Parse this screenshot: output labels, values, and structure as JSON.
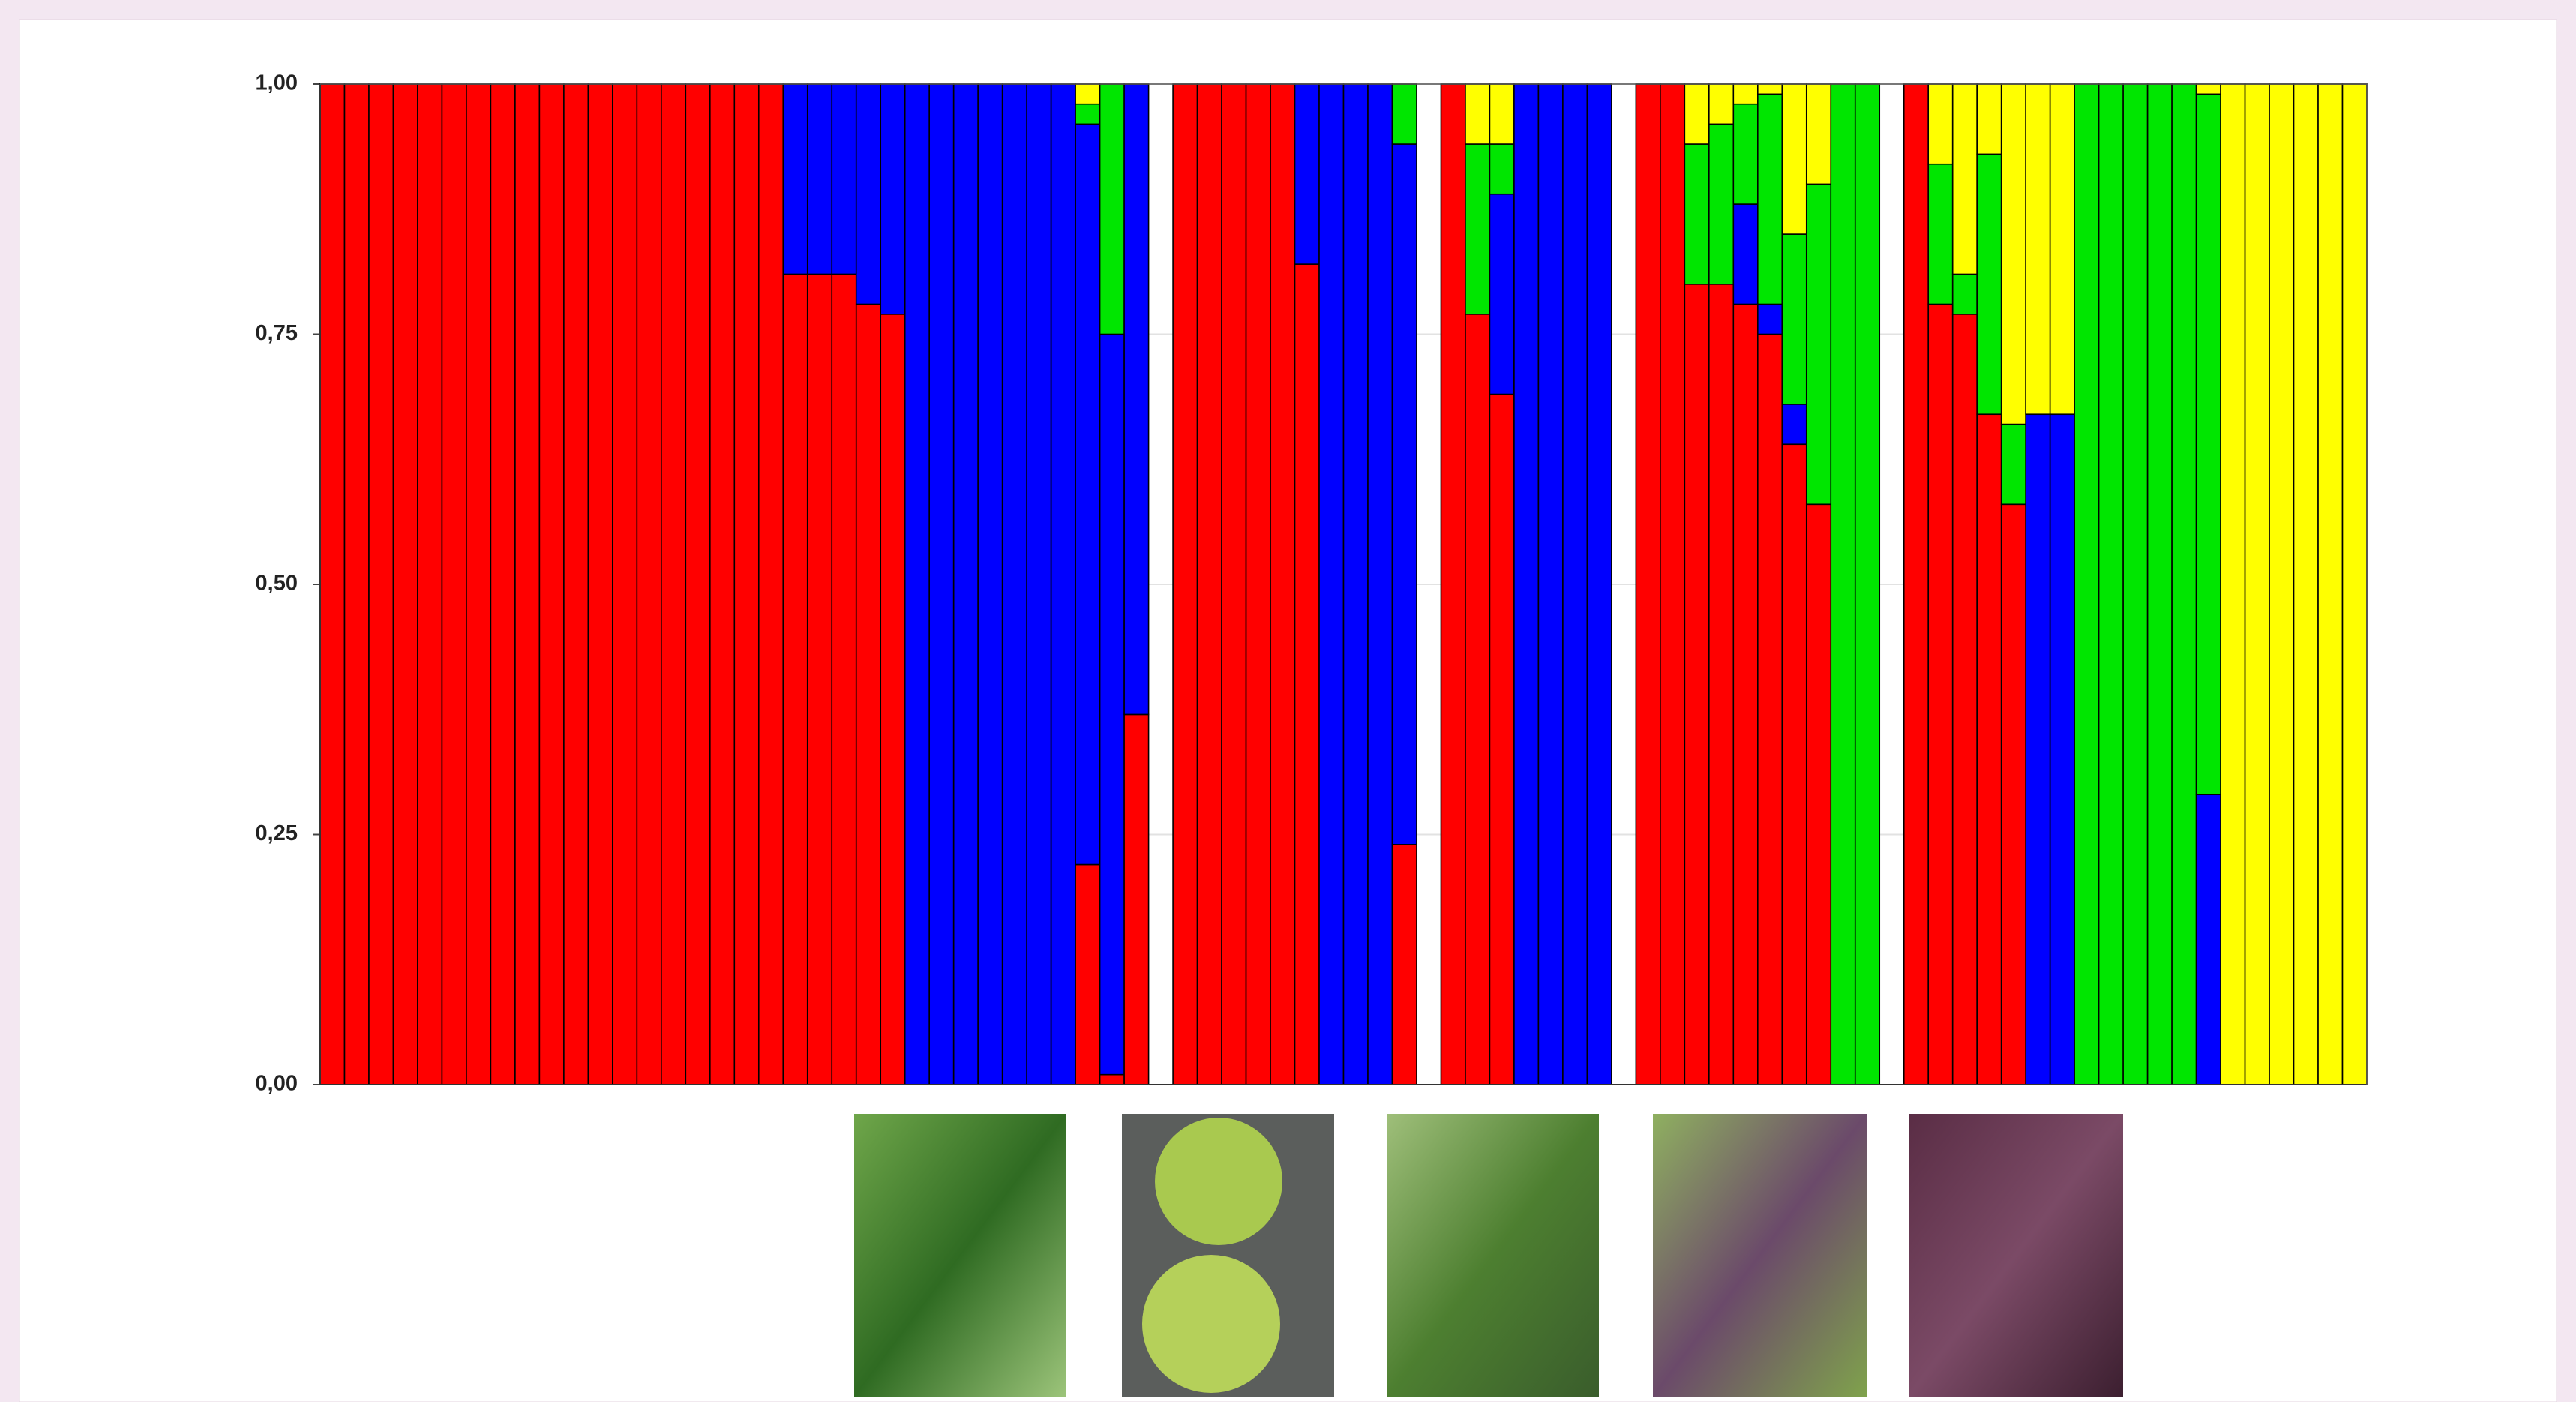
{
  "chart_data": {
    "type": "stacked_bar",
    "categories": [
      null,
      null,
      null,
      null,
      null,
      null,
      null,
      null,
      null,
      null,
      null,
      null,
      null,
      null,
      null,
      null,
      null,
      null,
      null,
      null,
      null,
      null,
      null,
      null,
      null,
      null,
      null,
      null,
      null,
      null,
      null,
      null,
      null,
      null,
      null,
      null,
      null,
      null,
      null,
      null,
      null,
      null,
      null,
      null,
      null,
      null,
      null,
      null,
      null,
      null,
      null,
      null,
      null,
      null,
      null,
      null,
      null,
      null,
      null,
      null,
      null,
      null,
      null,
      null,
      null,
      null,
      null,
      null,
      null,
      null,
      null,
      null,
      null,
      null,
      null,
      null,
      null,
      null,
      null,
      null,
      null,
      null,
      null,
      null
    ],
    "series": [
      {
        "color": "#ff0000",
        "values": [
          1,
          1,
          1,
          1,
          1,
          1,
          1,
          1,
          1,
          1,
          1,
          1,
          1,
          1,
          1,
          1,
          1,
          1,
          1,
          0.81,
          0.81,
          0.81,
          0.78,
          0.77,
          0,
          0,
          0,
          0,
          0,
          0,
          0,
          0.22,
          0.01,
          0.37,
          null,
          1,
          1,
          1,
          1,
          1,
          0.82,
          0,
          0,
          0,
          0.24,
          null,
          1,
          0.77,
          0.69,
          0,
          0,
          0,
          0,
          null,
          1,
          1,
          0.8,
          0.8,
          0.78,
          0.75,
          0.64,
          0.58,
          0,
          0,
          null,
          1,
          0.78,
          0.77,
          0.67,
          0.58,
          0,
          0,
          0,
          0,
          0,
          0,
          0,
          0,
          0,
          0,
          0,
          0,
          0,
          0
        ]
      },
      {
        "color": "#0000ff",
        "values": [
          0,
          0,
          0,
          0,
          0,
          0,
          0,
          0,
          0,
          0,
          0,
          0,
          0,
          0,
          0,
          0,
          0,
          0,
          0,
          0.19,
          0.19,
          0.19,
          0.22,
          0.23,
          1,
          1,
          1,
          1,
          1,
          1,
          1,
          0.74,
          0.74,
          0.63,
          null,
          0,
          0,
          0,
          0,
          0,
          0.18,
          1,
          1,
          1,
          0.7,
          null,
          0,
          0,
          0.2,
          1,
          1,
          1,
          1,
          null,
          0,
          0,
          0,
          0,
          0.1,
          0.03,
          0.04,
          0,
          0,
          0,
          null,
          0,
          0,
          0,
          0,
          0,
          0.67,
          0.67,
          0,
          0,
          0,
          0,
          0,
          0.29,
          0,
          0,
          0,
          0,
          0,
          0
        ]
      },
      {
        "color": "#00e600",
        "values": [
          0,
          0,
          0,
          0,
          0,
          0,
          0,
          0,
          0,
          0,
          0,
          0,
          0,
          0,
          0,
          0,
          0,
          0,
          0,
          0,
          0,
          0,
          0,
          0,
          0,
          0,
          0,
          0,
          0,
          0,
          0,
          0.02,
          0.25,
          0,
          null,
          0,
          0,
          0,
          0,
          0,
          0,
          0,
          0,
          0,
          0.06,
          null,
          0,
          0.17,
          0.05,
          0,
          0,
          0,
          0,
          null,
          0,
          0,
          0.14,
          0.16,
          0.1,
          0.21,
          0.17,
          0.32,
          1,
          1,
          null,
          0,
          0.14,
          0.04,
          0.26,
          0.08,
          0,
          0,
          1,
          1,
          1,
          1,
          1,
          0.7,
          0,
          0,
          0,
          0,
          0,
          0
        ]
      },
      {
        "color": "#ffff00",
        "values": [
          0,
          0,
          0,
          0,
          0,
          0,
          0,
          0,
          0,
          0,
          0,
          0,
          0,
          0,
          0,
          0,
          0,
          0,
          0,
          0,
          0,
          0,
          0,
          0,
          0,
          0,
          0,
          0,
          0,
          0,
          0,
          0.02,
          0,
          0,
          null,
          0,
          0,
          0,
          0,
          0,
          0,
          0,
          0,
          0,
          0,
          null,
          0,
          0.06,
          0.06,
          0,
          0,
          0,
          0,
          null,
          0,
          0,
          0.06,
          0.04,
          0.02,
          0.01,
          0.15,
          0.1,
          0,
          0,
          null,
          0,
          0.08,
          0.19,
          0.07,
          0.34,
          0.33,
          0.33,
          0,
          0,
          0,
          0,
          0,
          0.01,
          1,
          1,
          1,
          1,
          1,
          1
        ]
      }
    ],
    "ylim": [
      0,
      1
    ],
    "yticks": [
      {
        "value": 0,
        "label": "0,00"
      },
      {
        "value": 0.25,
        "label": "0,25"
      },
      {
        "value": 0.5,
        "label": "0,50"
      },
      {
        "value": 0.75,
        "label": "0,75"
      },
      {
        "value": 1,
        "label": "1,00"
      }
    ],
    "grid": true
  }
}
